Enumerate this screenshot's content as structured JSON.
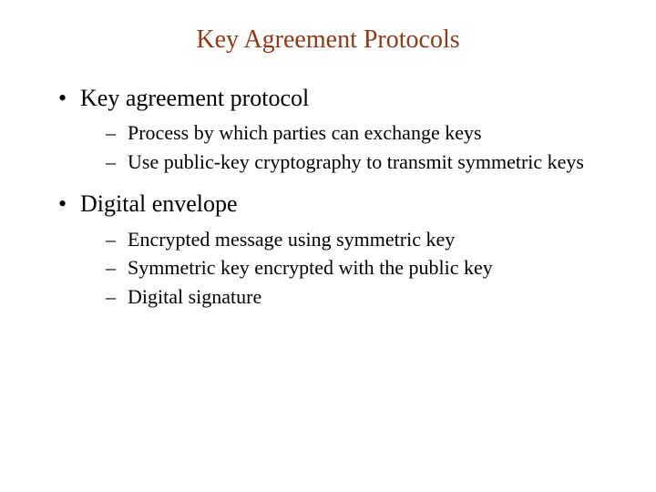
{
  "slide": {
    "title": "Key Agreement Protocols",
    "title_color": "#8b3a1a",
    "title_fontsize": 28,
    "body_color": "#000000",
    "background_color": "#ffffff",
    "level1_fontsize": 26,
    "level2_fontsize": 22,
    "font_family": "Times New Roman",
    "bullets": [
      {
        "text": "Key agreement protocol",
        "sub": [
          "Process by which parties can exchange keys",
          "Use public-key cryptography to transmit symmetric keys"
        ]
      },
      {
        "text": "Digital envelope",
        "sub": [
          "Encrypted message using symmetric key",
          "Symmetric key encrypted with the public key",
          "Digital signature"
        ]
      }
    ]
  }
}
